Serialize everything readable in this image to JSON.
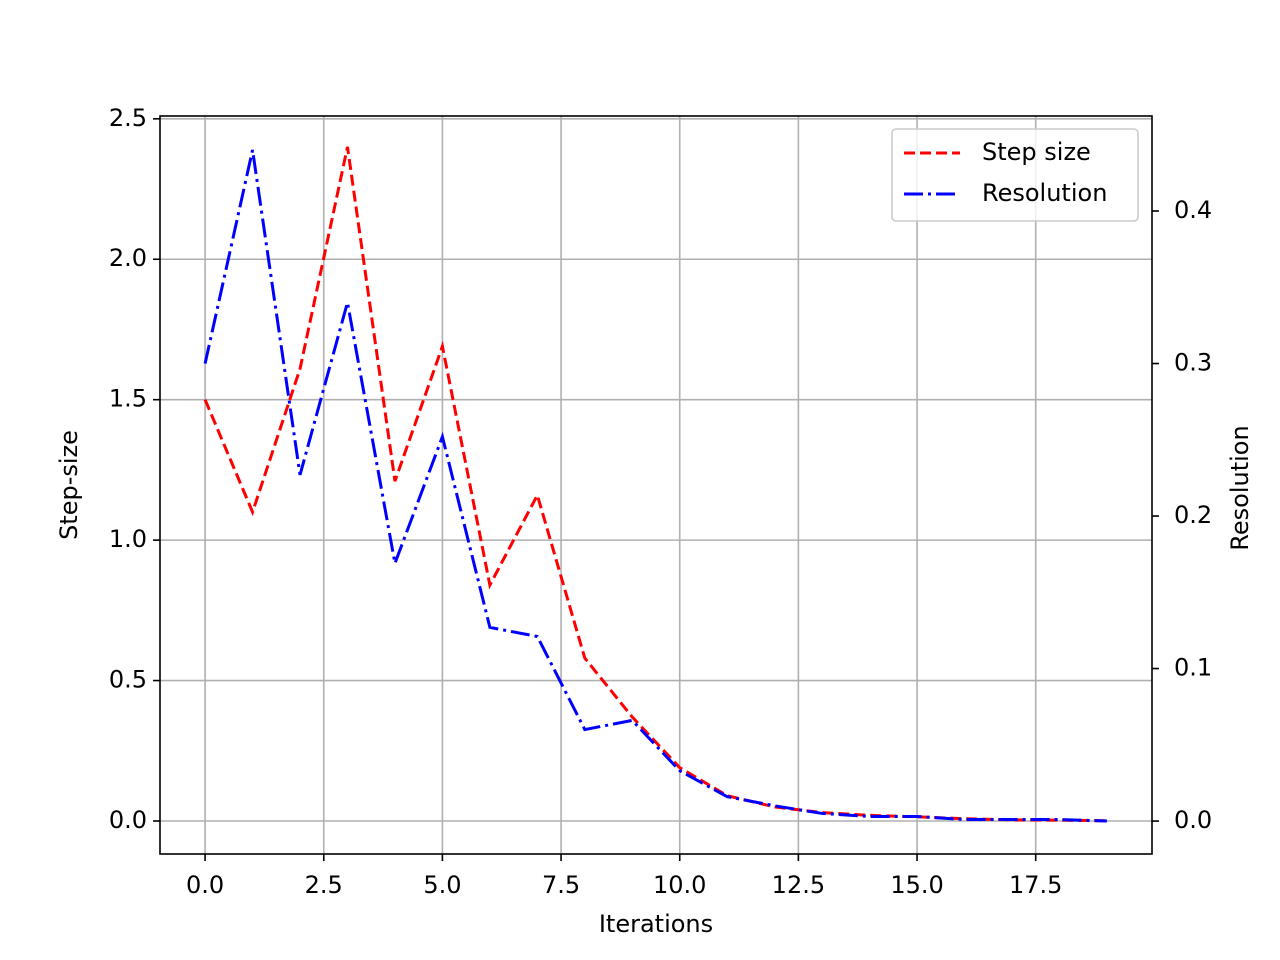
{
  "chart_data": {
    "type": "line",
    "x": [
      0,
      1,
      2,
      3,
      4,
      5,
      6,
      7,
      8,
      9,
      10,
      11,
      12,
      13,
      14,
      15,
      16,
      17,
      18,
      19
    ],
    "xlabel": "Iterations",
    "ylabel": "Step-size",
    "y2label": "Resolution",
    "series": [
      {
        "name": "Step size",
        "color": "#ff0000",
        "style": "dashed",
        "values": [
          1.5,
          1.1,
          1.61,
          2.4,
          1.21,
          1.69,
          0.84,
          1.16,
          0.58,
          0.37,
          0.19,
          0.09,
          0.05,
          0.03,
          0.02,
          0.015,
          0.008,
          0.004,
          0.003,
          0.001
        ]
      },
      {
        "name": "Resolution",
        "color": "#0000ff",
        "style": "dashdot",
        "axis": "y2",
        "values": [
          0.3,
          0.44,
          0.227,
          0.34,
          0.169,
          0.252,
          0.127,
          0.121,
          0.06,
          0.066,
          0.033,
          0.016,
          0.01,
          0.005,
          0.003,
          0.003,
          0.001,
          0.001,
          0.001,
          0.0
        ]
      }
    ],
    "xlim": [
      -0.95,
      19.95
    ],
    "xticks": [
      {
        "value": 0,
        "label": "0.0"
      },
      {
        "value": 2.5,
        "label": "2.5"
      },
      {
        "value": 5,
        "label": "5.0"
      },
      {
        "value": 7.5,
        "label": "7.5"
      },
      {
        "value": 10,
        "label": "10.0"
      },
      {
        "value": 12.5,
        "label": "12.5"
      },
      {
        "value": 15,
        "label": "15.0"
      },
      {
        "value": 17.5,
        "label": "17.5"
      }
    ],
    "ylim": [
      -0.1175,
      2.51
    ],
    "yticks": [
      {
        "value": 0,
        "label": "0.0"
      },
      {
        "value": 0.5,
        "label": "0.5"
      },
      {
        "value": 1,
        "label": "1.0"
      },
      {
        "value": 1.5,
        "label": "1.5"
      },
      {
        "value": 2,
        "label": "2.0"
      },
      {
        "value": 2.5,
        "label": "2.5"
      }
    ],
    "y2lim": [
      -0.0216,
      0.4623
    ],
    "y2ticks": [
      {
        "value": 0,
        "label": "0.0"
      },
      {
        "value": 0.1,
        "label": "0.1"
      },
      {
        "value": 0.2,
        "label": "0.2"
      },
      {
        "value": 0.3,
        "label": "0.3"
      },
      {
        "value": 0.4,
        "label": "0.4"
      }
    ],
    "grid": true,
    "legend": "upper right"
  }
}
